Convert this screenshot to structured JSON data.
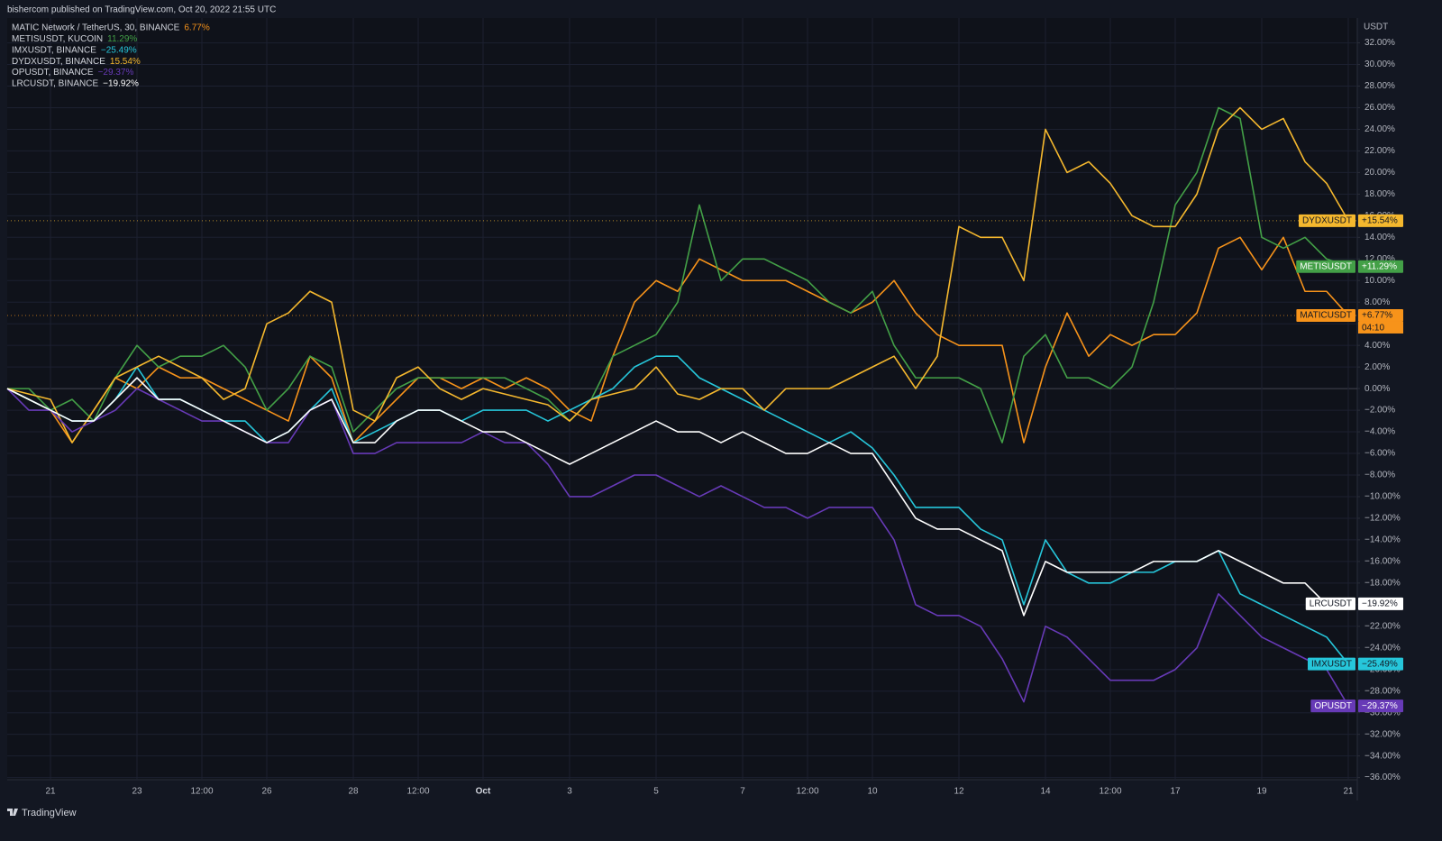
{
  "header": {
    "title": "bishercom published on TradingView.com, Oct 20, 2022 21:55 UTC"
  },
  "footer": {
    "brand": "TradingView"
  },
  "chart_data": {
    "type": "line",
    "y_unit": "USDT",
    "countdown": "04:10",
    "grid": true,
    "categories": [
      null,
      null,
      "21",
      null,
      null,
      null,
      "23",
      null,
      null,
      "12:00",
      null,
      null,
      "26",
      null,
      null,
      null,
      "28",
      null,
      null,
      "12:00",
      null,
      null,
      "Oct",
      null,
      null,
      null,
      "3",
      null,
      null,
      null,
      "5",
      null,
      null,
      null,
      "7",
      null,
      null,
      "12:00",
      null,
      null,
      "10",
      null,
      null,
      null,
      "12",
      null,
      null,
      null,
      "14",
      null,
      null,
      "12:00",
      null,
      null,
      "17",
      null,
      null,
      null,
      "19",
      null,
      null,
      null,
      "21"
    ],
    "ylim": [
      -36.2,
      34.3
    ],
    "yticks": [
      {
        "value": 32,
        "label": "32.00%"
      },
      {
        "value": 30,
        "label": "30.00%"
      },
      {
        "value": 28,
        "label": "28.00%"
      },
      {
        "value": 26,
        "label": "26.00%"
      },
      {
        "value": 24,
        "label": "24.00%"
      },
      {
        "value": 22,
        "label": "22.00%"
      },
      {
        "value": 20,
        "label": "20.00%"
      },
      {
        "value": 18,
        "label": "18.00%"
      },
      {
        "value": 16,
        "label": "16.00%"
      },
      {
        "value": 14,
        "label": "14.00%"
      },
      {
        "value": 12,
        "label": "12.00%"
      },
      {
        "value": 10,
        "label": "10.00%"
      },
      {
        "value": 8,
        "label": "8.00%"
      },
      {
        "value": 6,
        "label": "6.00%"
      },
      {
        "value": 4,
        "label": "4.00%"
      },
      {
        "value": 2,
        "label": "2.00%"
      },
      {
        "value": 0,
        "label": "0.00%"
      },
      {
        "value": -2,
        "label": "−2.00%"
      },
      {
        "value": -4,
        "label": "−4.00%"
      },
      {
        "value": -6,
        "label": "−6.00%"
      },
      {
        "value": -8,
        "label": "−8.00%"
      },
      {
        "value": -10,
        "label": "−10.00%"
      },
      {
        "value": -12,
        "label": "−12.00%"
      },
      {
        "value": -14,
        "label": "−14.00%"
      },
      {
        "value": -16,
        "label": "−16.00%"
      },
      {
        "value": -18,
        "label": "−18.00%"
      },
      {
        "value": -20,
        "label": "−20.00%"
      },
      {
        "value": -22,
        "label": "−22.00%"
      },
      {
        "value": -24,
        "label": "−24.00%"
      },
      {
        "value": -26,
        "label": "−26.00%"
      },
      {
        "value": -28,
        "label": "−28.00%"
      },
      {
        "value": -30,
        "label": "−30.00%"
      },
      {
        "value": -32,
        "label": "−32.00%"
      },
      {
        "value": -34,
        "label": "−34.00%"
      },
      {
        "value": -36,
        "label": "−36.00%"
      }
    ],
    "series": [
      {
        "name": "MATIC Network / TetherUS, 30, BINANCE",
        "ticker": "MATICUSDT",
        "color": "#f7931a",
        "legend_label": "6.77%",
        "tag_label": "+6.77%",
        "dotted": true,
        "values": [
          0,
          -1,
          -2,
          -5,
          -2,
          1,
          0,
          2,
          1,
          1,
          0,
          -1,
          -2,
          -3,
          3,
          1,
          -5,
          -3,
          -1,
          1,
          1,
          0,
          1,
          0,
          1,
          0,
          -2,
          -3,
          3,
          8,
          10,
          9,
          12,
          11,
          10,
          10,
          10,
          9,
          8,
          7,
          8,
          10,
          7,
          5,
          4,
          4,
          4,
          -5,
          2,
          7,
          3,
          5,
          4,
          5,
          5,
          7,
          13,
          14,
          11,
          14,
          9,
          9,
          6.77
        ]
      },
      {
        "name": "METISUSDT, KUCOIN",
        "ticker": "METISUSDT",
        "color": "#43a047",
        "legend_label": "11.29%",
        "tag_label": "+11.29%",
        "dotted": false,
        "values": [
          0,
          0,
          -2,
          -1,
          -3,
          1,
          4,
          2,
          3,
          3,
          4,
          2,
          -2,
          0,
          3,
          2,
          -4,
          -2,
          0,
          1,
          1,
          1,
          1,
          1,
          0,
          -1,
          -3,
          -1,
          3,
          4,
          5,
          8,
          17,
          10,
          12,
          12,
          11,
          10,
          8,
          7,
          9,
          4,
          1,
          1,
          1,
          0,
          -5,
          3,
          5,
          1,
          1,
          0,
          2,
          8,
          17,
          20,
          26,
          25,
          14,
          13,
          14,
          12,
          11.29
        ]
      },
      {
        "name": "IMXUSDT, BINANCE",
        "ticker": "IMXUSDT",
        "color": "#26c6da",
        "legend_label": "−25.49%",
        "tag_label": "−25.49%",
        "dotted": false,
        "values": [
          0,
          -1,
          -2,
          -3,
          -3,
          -1,
          2,
          -1,
          -1,
          -2,
          -3,
          -3,
          -5,
          -4,
          -2,
          0,
          -5,
          -4,
          -3,
          -2,
          -2,
          -3,
          -2,
          -2,
          -2,
          -3,
          -2,
          -1,
          0,
          2,
          3,
          3,
          1,
          0,
          -1,
          -2,
          -3,
          -4,
          -5,
          -4,
          -5.5,
          -8,
          -11,
          -11,
          -11,
          -13,
          -14,
          -20,
          -14,
          -17,
          -18,
          -18,
          -17,
          -17,
          -16,
          -16,
          -15,
          -19,
          -20,
          -21,
          -22,
          -23,
          -25.49
        ]
      },
      {
        "name": "DYDXUSDT, BINANCE",
        "ticker": "DYDXUSDT",
        "color": "#f5b82e",
        "legend_label": "15.54%",
        "tag_label": "+15.54%",
        "dotted": true,
        "values": [
          0,
          -0.5,
          -1,
          -5,
          -2,
          1,
          2,
          3,
          2,
          1,
          -1,
          0,
          6,
          7,
          9,
          8,
          -2,
          -3,
          1,
          2,
          0,
          -1,
          0,
          -0.5,
          -1,
          -1.5,
          -3,
          -1,
          -0.5,
          0,
          2,
          -0.5,
          -1,
          0,
          0,
          -2,
          0,
          0,
          0,
          1,
          2,
          3,
          0,
          3,
          15,
          14,
          14,
          10,
          24,
          20,
          21,
          19,
          16,
          15,
          15,
          18,
          24,
          26,
          24,
          25,
          21,
          19,
          15.54
        ]
      },
      {
        "name": "OPUSDT, BINANCE",
        "ticker": "OPUSDT",
        "color": "#673ab7",
        "legend_label": "−29.37%",
        "tag_label": "−29.37%",
        "dotted": false,
        "values": [
          0,
          -2,
          -2,
          -4,
          -3,
          -2,
          0,
          -1,
          -2,
          -3,
          -3,
          -4,
          -5,
          -5,
          -2,
          -1,
          -6,
          -6,
          -5,
          -5,
          -5,
          -5,
          -4,
          -5,
          -5,
          -7,
          -10,
          -10,
          -9,
          -8,
          -8,
          -9,
          -10,
          -9,
          -10,
          -11,
          -11,
          -12,
          -11,
          -11,
          -11,
          -14,
          -20,
          -21,
          -21,
          -22,
          -25,
          -29,
          -22,
          -23,
          -25,
          -27,
          -27,
          -27,
          -26,
          -24,
          -19,
          -21,
          -23,
          -24,
          -25,
          -26,
          -29.37
        ]
      },
      {
        "name": "LRCUSDT, BINANCE",
        "ticker": "LRCUSDT",
        "color": "#ffffff",
        "legend_label": "−19.92%",
        "tag_label": "−19.92%",
        "dotted": false,
        "values": [
          0,
          -1,
          -2,
          -3,
          -3,
          -1,
          1,
          -1,
          -1,
          -2,
          -3,
          -4,
          -5,
          -4,
          -2,
          -1,
          -5,
          -5,
          -3,
          -2,
          -2,
          -3,
          -4,
          -4,
          -5,
          -6,
          -7,
          -6,
          -5,
          -4,
          -3,
          -4,
          -4,
          -5,
          -4,
          -5,
          -6,
          -6,
          -5,
          -6,
          -6,
          -9,
          -12,
          -13,
          -13,
          -14,
          -15,
          -21,
          -16,
          -17,
          -17,
          -17,
          -17,
          -16,
          -16,
          -16,
          -15,
          -16,
          -17,
          -18,
          -18,
          -20,
          -19.92
        ]
      }
    ]
  }
}
